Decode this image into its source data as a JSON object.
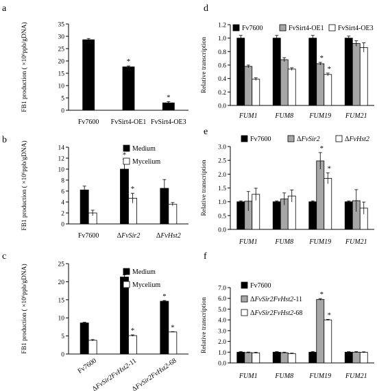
{
  "colors": {
    "black": "#000000",
    "gray": "#a6a6a6",
    "white": "#ffffff"
  },
  "chart_data": [
    {
      "panel": "a",
      "type": "bar",
      "ylabel": "FB1 production ( ×10⁶ppb/gDNA)",
      "ylim": [
        0,
        35
      ],
      "yticks": [
        0,
        5,
        10,
        15,
        20,
        25,
        30,
        35
      ],
      "categories": [
        "Fv7600",
        "FvSirt4-OE1",
        "FvSirt4-OE3"
      ],
      "series": [
        {
          "color": "black",
          "values": [
            28.6,
            17.6,
            3.0
          ],
          "errors": [
            0.5,
            0.4,
            0.5
          ]
        }
      ],
      "significance": [
        [
          "",
          "*",
          "*"
        ]
      ]
    },
    {
      "panel": "b",
      "type": "bar",
      "ylabel": "FB1 production ( ×10⁶ppb/gDNA)",
      "ylim": [
        0,
        14
      ],
      "yticks": [
        0,
        2,
        4,
        6,
        8,
        10,
        12,
        14
      ],
      "categories": [
        "Fv7600",
        "ΔFvSir2",
        "ΔFvHst2"
      ],
      "categories_italic_part": [
        "",
        "FvSir2",
        "FvHst2"
      ],
      "series": [
        {
          "name": "Medium",
          "color": "black",
          "values": [
            6.2,
            10.0,
            6.5
          ],
          "errors": [
            0.7,
            1.8,
            1.6
          ]
        },
        {
          "name": "Mycelium",
          "color": "white",
          "values": [
            2.0,
            4.7,
            3.6
          ],
          "errors": [
            0.5,
            0.9,
            0.3
          ]
        }
      ],
      "significance": [
        [
          "",
          "*",
          ""
        ],
        [
          "",
          "*",
          ""
        ]
      ]
    },
    {
      "panel": "c",
      "type": "bar",
      "ylabel": "FB1 production ( ×10⁶ppb/gDNA)",
      "ylim": [
        0,
        25
      ],
      "yticks": [
        0,
        5,
        10,
        15,
        20,
        25
      ],
      "categories": [
        "Fv7600",
        "ΔFvSir2FvHst2-11",
        "ΔFvSir2FvHst2-68"
      ],
      "categories_italic_part": [
        "",
        "FvSir2FvHst2",
        "FvSir2FvHst2"
      ],
      "series": [
        {
          "name": "Medium",
          "color": "black",
          "values": [
            8.6,
            21.3,
            14.6
          ],
          "errors": [
            0.2,
            0.6,
            0.2
          ]
        },
        {
          "name": "Mycelium",
          "color": "white",
          "values": [
            3.8,
            5.1,
            6.1
          ],
          "errors": [
            0.2,
            0.2,
            0.1
          ]
        }
      ],
      "significance": [
        [
          "",
          "*",
          "*"
        ],
        [
          "",
          "*",
          "*"
        ]
      ]
    },
    {
      "panel": "d",
      "type": "bar",
      "ylabel": "Relative transcription",
      "ylim": [
        0,
        1.2
      ],
      "yticks": [
        0,
        0.2,
        0.4,
        0.6,
        0.8,
        1.0,
        1.2
      ],
      "categories": [
        "FUM1",
        "FUM8",
        "FUM19",
        "FUM21"
      ],
      "series": [
        {
          "name": "Fv7600",
          "color": "black",
          "values": [
            1.0,
            1.0,
            1.0,
            1.0
          ],
          "errors": [
            0.04,
            0.04,
            0.04,
            0.03
          ]
        },
        {
          "name": "FvSirt4-OE1",
          "color": "gray",
          "values": [
            0.58,
            0.68,
            0.62,
            0.92
          ],
          "errors": [
            0.02,
            0.03,
            0.02,
            0.04
          ]
        },
        {
          "name": "FvSirt4-OE3",
          "color": "white",
          "values": [
            0.39,
            0.54,
            0.46,
            0.86
          ],
          "errors": [
            0.02,
            0.02,
            0.02,
            0.07
          ]
        }
      ],
      "significance": [
        [
          "",
          "",
          "",
          ""
        ],
        [
          "",
          "",
          "*",
          ""
        ],
        [
          "",
          "",
          "*",
          ""
        ]
      ]
    },
    {
      "panel": "e",
      "type": "bar",
      "ylabel": "Relative transcription",
      "ylim": [
        0,
        3.0
      ],
      "yticks": [
        0,
        0.5,
        1.0,
        1.5,
        2.0,
        2.5,
        3.0
      ],
      "categories": [
        "FUM1",
        "FUM8",
        "FUM19",
        "FUM21"
      ],
      "series": [
        {
          "name": "Fv7600",
          "color": "black",
          "values": [
            1.0,
            1.0,
            1.0,
            1.0
          ],
          "errors": [
            0.03,
            0.03,
            0.03,
            0.03
          ]
        },
        {
          "name": "ΔFvSir2",
          "color": "gray",
          "values": [
            1.02,
            1.1,
            2.48,
            1.04
          ],
          "errors": [
            0.35,
            0.22,
            0.3,
            0.4
          ]
        },
        {
          "name": "ΔFvHst2",
          "color": "white",
          "values": [
            1.27,
            1.21,
            1.85,
            0.77
          ],
          "errors": [
            0.22,
            0.22,
            0.2,
            0.22
          ]
        }
      ],
      "significance": [
        [
          "",
          "",
          "",
          ""
        ],
        [
          "",
          "",
          "*",
          ""
        ],
        [
          "",
          "",
          "*",
          ""
        ]
      ]
    },
    {
      "panel": "f",
      "type": "bar",
      "ylabel": "Relative transcription",
      "ylim": [
        0,
        7.0
      ],
      "yticks": [
        0,
        1.0,
        2.0,
        3.0,
        4.0,
        5.0,
        6.0,
        7.0
      ],
      "categories": [
        "FUM1",
        "FUM8",
        "FUM19",
        "FUM21"
      ],
      "series": [
        {
          "name": "Fv7600",
          "color": "black",
          "values": [
            1.0,
            1.0,
            1.0,
            1.0
          ],
          "errors": [
            0.05,
            0.05,
            0.05,
            0.05
          ]
        },
        {
          "name": "ΔFvSir2FvHst2-11",
          "color": "gray",
          "values": [
            0.96,
            0.95,
            5.9,
            1.0
          ],
          "errors": [
            0.05,
            0.05,
            0.08,
            0.05
          ]
        },
        {
          "name": "ΔFvSir2FvHst2-68",
          "color": "white",
          "values": [
            0.94,
            0.87,
            4.0,
            0.98
          ],
          "errors": [
            0.05,
            0.04,
            0.05,
            0.05
          ]
        }
      ],
      "significance": [
        [
          "",
          "",
          "",
          ""
        ],
        [
          "",
          "",
          "*",
          ""
        ],
        [
          "",
          "",
          "*",
          ""
        ]
      ]
    }
  ]
}
